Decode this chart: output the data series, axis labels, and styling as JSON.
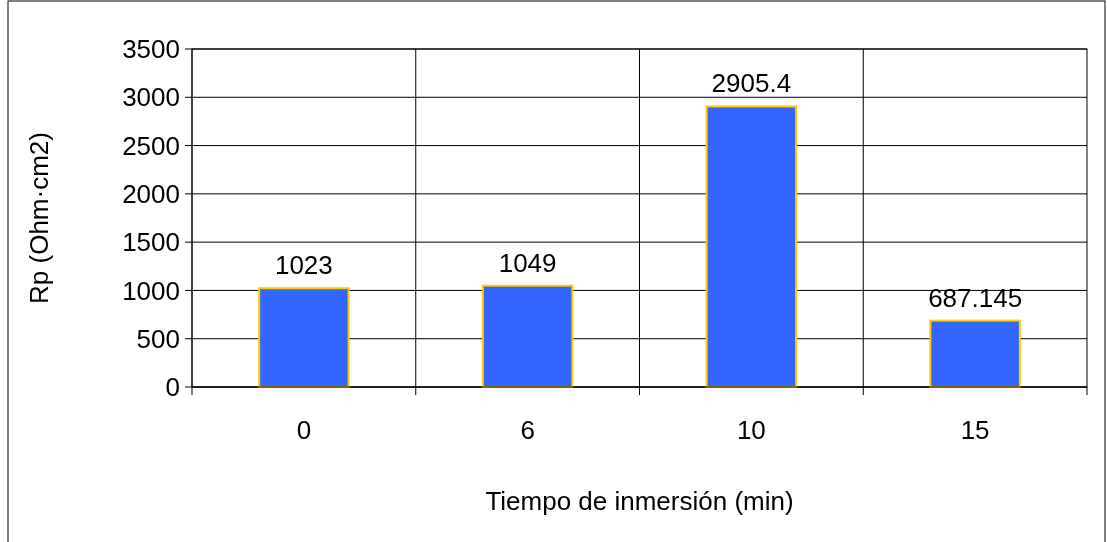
{
  "chart_data": {
    "type": "bar",
    "xlabel": "Tiempo de inmersión (min)",
    "ylabel": "Rp (Ohm·cm2)",
    "categories": [
      "0",
      "6",
      "10",
      "15"
    ],
    "values": [
      1023,
      1049,
      2905.4,
      687.145
    ],
    "color": "#3366ff",
    "ylim": [
      0,
      3500
    ],
    "yticks": [
      0,
      500,
      1000,
      1500,
      2000,
      2500,
      3000,
      3500
    ],
    "grid": true,
    "data_labels": true
  }
}
